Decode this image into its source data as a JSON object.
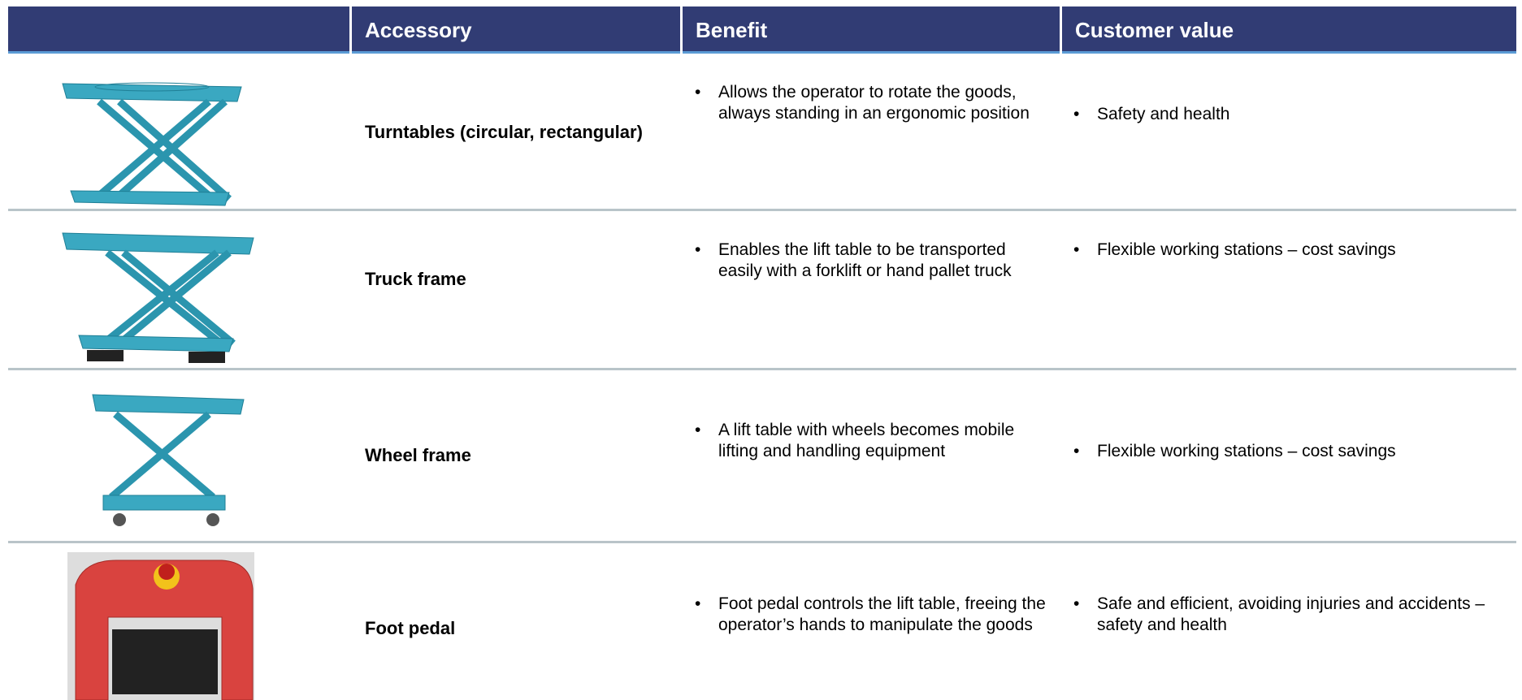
{
  "header": {
    "columns": [
      "Accessory",
      "Benefit",
      "Customer value"
    ]
  },
  "rows": [
    {
      "accessory": "Turntables (circular, rectangular)",
      "benefit": "Allows the operator to rotate the goods, always standing in an ergonomic position",
      "customer_value": "Safety and health"
    },
    {
      "accessory": "Truck frame",
      "benefit": "Enables the lift table to be transported easily with a forklift or hand pallet truck",
      "customer_value": "Flexible working stations – cost savings"
    },
    {
      "accessory": "Wheel frame",
      "benefit": "A lift table with wheels becomes mobile lifting and handling equipment",
      "customer_value": "Flexible working stations – cost savings"
    },
    {
      "accessory": "Foot pedal",
      "benefit": "Foot pedal controls the lift table, freeing the operator’s hands to manipulate the goods",
      "customer_value": "Safe and efficient, avoiding injuries and accidents – safety and health"
    }
  ]
}
